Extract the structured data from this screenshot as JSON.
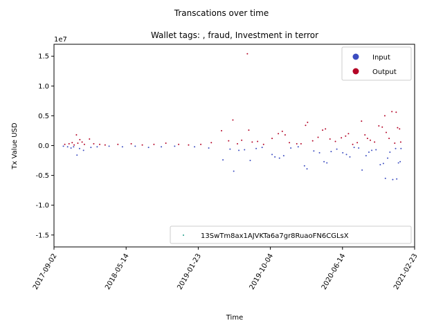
{
  "chart_data": {
    "type": "scatter",
    "suptitle": "Transcations over time",
    "title": "Wallet tags: , fraud, Investment in terror",
    "xlabel": "Time",
    "ylabel": "Tx Value USD",
    "y_offset_label": "1e7",
    "x_ticks": [
      "2017-09-02",
      "2018-05-14",
      "2019-01-23",
      "2019-10-04",
      "2020-06-14",
      "2021-02-23"
    ],
    "y_ticks": [
      -1.5,
      -1.0,
      -0.5,
      0.0,
      0.5,
      1.0,
      1.5
    ],
    "xlim": [
      "2017-09-02",
      "2021-02-23"
    ],
    "ylim": [
      -1.7,
      1.7
    ],
    "legend_top": {
      "placement": "top-right",
      "entries": [
        {
          "label": "Input",
          "color": "#3b4cc0"
        },
        {
          "label": "Output",
          "color": "#b40426"
        }
      ]
    },
    "legend_bottom": {
      "placement": "bottom-right",
      "label": "13SwTm8ax1AJVKTa6a7gr8RuaoFN6CGLsX",
      "color": "#1f9e89"
    },
    "series": [
      {
        "name": "Output",
        "color": "#b40426",
        "points": [
          [
            "2017-10-10",
            0.02
          ],
          [
            "2017-10-25",
            0.03
          ],
          [
            "2017-11-05",
            0.05
          ],
          [
            "2017-11-12",
            0.01
          ],
          [
            "2017-11-20",
            0.18
          ],
          [
            "2017-11-25",
            0.04
          ],
          [
            "2017-12-02",
            0.1
          ],
          [
            "2017-12-10",
            0.06
          ],
          [
            "2017-12-18",
            0.02
          ],
          [
            "2018-01-05",
            0.11
          ],
          [
            "2018-01-20",
            0.03
          ],
          [
            "2018-02-10",
            0.02
          ],
          [
            "2018-03-01",
            0.01
          ],
          [
            "2018-04-15",
            0.02
          ],
          [
            "2018-06-01",
            0.03
          ],
          [
            "2018-07-10",
            0.01
          ],
          [
            "2018-08-20",
            0.02
          ],
          [
            "2018-10-01",
            0.04
          ],
          [
            "2018-11-15",
            0.02
          ],
          [
            "2018-12-20",
            0.01
          ],
          [
            "2019-02-01",
            0.02
          ],
          [
            "2019-03-10",
            0.05
          ],
          [
            "2019-04-15",
            0.25
          ],
          [
            "2019-05-10",
            0.08
          ],
          [
            "2019-05-25",
            0.43
          ],
          [
            "2019-06-10",
            0.03
          ],
          [
            "2019-06-25",
            0.09
          ],
          [
            "2019-07-15",
            1.54
          ],
          [
            "2019-07-20",
            0.26
          ],
          [
            "2019-08-01",
            0.06
          ],
          [
            "2019-08-20",
            0.07
          ],
          [
            "2019-09-10",
            0.02
          ],
          [
            "2019-10-10",
            0.12
          ],
          [
            "2019-11-01",
            0.2
          ],
          [
            "2019-11-15",
            0.24
          ],
          [
            "2019-11-25",
            0.18
          ],
          [
            "2019-12-10",
            0.05
          ],
          [
            "2020-01-05",
            0.03
          ],
          [
            "2020-01-20",
            0.03
          ],
          [
            "2020-02-05",
            0.34
          ],
          [
            "2020-02-12",
            0.39
          ],
          [
            "2020-03-01",
            0.08
          ],
          [
            "2020-03-20",
            0.14
          ],
          [
            "2020-04-05",
            0.26
          ],
          [
            "2020-04-15",
            0.28
          ],
          [
            "2020-05-01",
            0.11
          ],
          [
            "2020-05-20",
            0.07
          ],
          [
            "2020-06-10",
            0.13
          ],
          [
            "2020-06-25",
            0.16
          ],
          [
            "2020-07-05",
            0.2
          ],
          [
            "2020-07-20",
            0.02
          ],
          [
            "2020-08-05",
            0.05
          ],
          [
            "2020-08-20",
            0.41
          ],
          [
            "2020-09-01",
            0.18
          ],
          [
            "2020-09-10",
            0.12
          ],
          [
            "2020-09-20",
            0.09
          ],
          [
            "2020-10-05",
            0.06
          ],
          [
            "2020-10-20",
            0.33
          ],
          [
            "2020-11-01",
            0.31
          ],
          [
            "2020-11-10",
            0.5
          ],
          [
            "2020-11-15",
            0.22
          ],
          [
            "2020-11-25",
            0.12
          ],
          [
            "2020-12-05",
            0.57
          ],
          [
            "2020-12-15",
            0.04
          ],
          [
            "2020-12-20",
            0.56
          ],
          [
            "2020-12-25",
            0.3
          ],
          [
            "2021-01-01",
            0.28
          ],
          [
            "2021-01-05",
            0.06
          ]
        ]
      },
      {
        "name": "Input",
        "color": "#3b4cc0",
        "points": [
          [
            "2017-10-05",
            -0.01
          ],
          [
            "2017-10-20",
            -0.02
          ],
          [
            "2017-11-01",
            -0.04
          ],
          [
            "2017-11-10",
            -0.02
          ],
          [
            "2017-11-22",
            -0.16
          ],
          [
            "2017-12-01",
            -0.05
          ],
          [
            "2017-12-15",
            -0.08
          ],
          [
            "2018-01-10",
            -0.03
          ],
          [
            "2018-02-01",
            -0.02
          ],
          [
            "2018-03-15",
            -0.01
          ],
          [
            "2018-05-01",
            -0.02
          ],
          [
            "2018-06-15",
            -0.01
          ],
          [
            "2018-08-01",
            -0.03
          ],
          [
            "2018-09-15",
            -0.02
          ],
          [
            "2018-11-01",
            -0.01
          ],
          [
            "2019-01-10",
            -0.02
          ],
          [
            "2019-03-01",
            -0.04
          ],
          [
            "2019-04-20",
            -0.24
          ],
          [
            "2019-05-15",
            -0.06
          ],
          [
            "2019-05-28",
            -0.43
          ],
          [
            "2019-06-15",
            -0.08
          ],
          [
            "2019-07-05",
            -0.07
          ],
          [
            "2019-07-25",
            -0.25
          ],
          [
            "2019-08-15",
            -0.05
          ],
          [
            "2019-09-05",
            -0.03
          ],
          [
            "2019-10-10",
            -0.15
          ],
          [
            "2019-10-20",
            -0.19
          ],
          [
            "2019-11-05",
            -0.21
          ],
          [
            "2019-11-20",
            -0.17
          ],
          [
            "2019-12-15",
            -0.04
          ],
          [
            "2020-01-10",
            -0.02
          ],
          [
            "2020-02-01",
            -0.34
          ],
          [
            "2020-02-10",
            -0.39
          ],
          [
            "2020-03-05",
            -0.09
          ],
          [
            "2020-03-25",
            -0.12
          ],
          [
            "2020-04-10",
            -0.27
          ],
          [
            "2020-04-20",
            -0.29
          ],
          [
            "2020-05-05",
            -0.1
          ],
          [
            "2020-05-25",
            -0.06
          ],
          [
            "2020-06-15",
            -0.12
          ],
          [
            "2020-06-28",
            -0.15
          ],
          [
            "2020-07-10",
            -0.19
          ],
          [
            "2020-07-25",
            -0.03
          ],
          [
            "2020-08-10",
            -0.04
          ],
          [
            "2020-08-22",
            -0.41
          ],
          [
            "2020-09-05",
            -0.17
          ],
          [
            "2020-09-15",
            -0.11
          ],
          [
            "2020-09-25",
            -0.08
          ],
          [
            "2020-10-10",
            -0.07
          ],
          [
            "2020-10-25",
            -0.32
          ],
          [
            "2020-11-05",
            -0.3
          ],
          [
            "2020-11-12",
            -0.55
          ],
          [
            "2020-11-20",
            -0.21
          ],
          [
            "2020-11-28",
            -0.11
          ],
          [
            "2020-12-08",
            -0.57
          ],
          [
            "2020-12-18",
            -0.05
          ],
          [
            "2020-12-22",
            -0.56
          ],
          [
            "2020-12-28",
            -0.29
          ],
          [
            "2021-01-03",
            -0.27
          ],
          [
            "2021-01-06",
            -0.05
          ]
        ]
      }
    ]
  }
}
